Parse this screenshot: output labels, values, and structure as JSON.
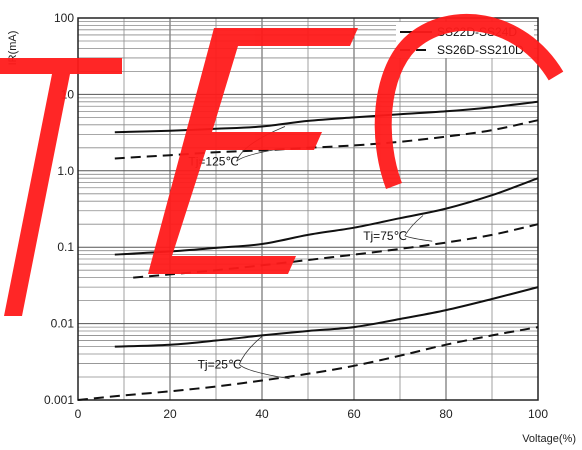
{
  "chart_data": {
    "type": "line",
    "title": "",
    "xlabel": "Voltage(%)",
    "ylabel": "IR(mA)",
    "xlim": [
      0,
      100
    ],
    "ylim": [
      0.001,
      100
    ],
    "yscale": "log",
    "xticks": [
      "0",
      "20",
      "40",
      "60",
      "80",
      "100"
    ],
    "yticks": [
      "0.001",
      "0.01",
      "0.1",
      "1.0",
      "10",
      "100"
    ],
    "grid": true,
    "legend_position": "top-right",
    "legend": [
      {
        "label": "SS22D-SS24D",
        "style": "solid"
      },
      {
        "label": "SS26D-SS210D",
        "style": "dashed"
      }
    ],
    "annotations": [
      {
        "text": "Tj=125℃",
        "x": 24,
        "y": 1.18,
        "targets": [
          {
            "x": 45,
            "y": 3.8
          },
          {
            "x": 43,
            "y": 1.9
          }
        ]
      },
      {
        "text": "Tj=75℃",
        "x": 62,
        "y": 0.125,
        "targets": [
          {
            "x": 75,
            "y": 0.26
          },
          {
            "x": 77,
            "y": 0.12
          }
        ]
      },
      {
        "text": "Tj=25℃",
        "x": 26,
        "y": 0.0026,
        "targets": [
          {
            "x": 40,
            "y": 0.0068
          },
          {
            "x": 46,
            "y": 0.0019
          }
        ]
      }
    ],
    "series": [
      {
        "label": "SS22D-SS24D",
        "group": "Tj=125℃",
        "style": "solid",
        "x": [
          8,
          20,
          30,
          40,
          50,
          60,
          70,
          80,
          90,
          100
        ],
        "y": [
          3.2,
          3.35,
          3.55,
          3.8,
          4.5,
          5.0,
          5.5,
          6.0,
          6.8,
          8.0
        ]
      },
      {
        "label": "SS26D-SS210D",
        "group": "Tj=125℃",
        "style": "dashed",
        "x": [
          8,
          20,
          30,
          40,
          50,
          60,
          70,
          80,
          90,
          100
        ],
        "y": [
          1.45,
          1.6,
          1.75,
          1.85,
          2.0,
          2.15,
          2.4,
          2.8,
          3.4,
          4.6
        ]
      },
      {
        "label": "SS22D-SS24D",
        "group": "Tj=75℃",
        "style": "solid",
        "x": [
          8,
          20,
          30,
          40,
          50,
          60,
          70,
          80,
          90,
          100
        ],
        "y": [
          0.08,
          0.088,
          0.098,
          0.11,
          0.145,
          0.18,
          0.24,
          0.32,
          0.48,
          0.8
        ]
      },
      {
        "label": "SS26D-SS210D",
        "group": "Tj=75℃",
        "style": "dashed",
        "x": [
          12,
          20,
          30,
          40,
          50,
          60,
          70,
          80,
          90,
          100
        ],
        "y": [
          0.04,
          0.044,
          0.05,
          0.058,
          0.068,
          0.08,
          0.095,
          0.115,
          0.145,
          0.2
        ]
      },
      {
        "label": "SS22D-SS24D",
        "group": "Tj=25℃",
        "style": "solid",
        "x": [
          8,
          20,
          30,
          40,
          50,
          60,
          70,
          80,
          90,
          100
        ],
        "y": [
          0.005,
          0.0053,
          0.006,
          0.007,
          0.008,
          0.009,
          0.0115,
          0.015,
          0.021,
          0.03
        ]
      },
      {
        "label": "SS26D-SS210D",
        "group": "Tj=25℃",
        "style": "dashed",
        "x": [
          0,
          10,
          20,
          30,
          40,
          50,
          60,
          70,
          80,
          90,
          100
        ],
        "y": [
          0.001,
          0.00115,
          0.0013,
          0.0015,
          0.0018,
          0.0022,
          0.0028,
          0.0038,
          0.0053,
          0.007,
          0.009
        ]
      }
    ]
  },
  "watermark": {
    "text": "TEC",
    "color": "#ff1a1a"
  }
}
